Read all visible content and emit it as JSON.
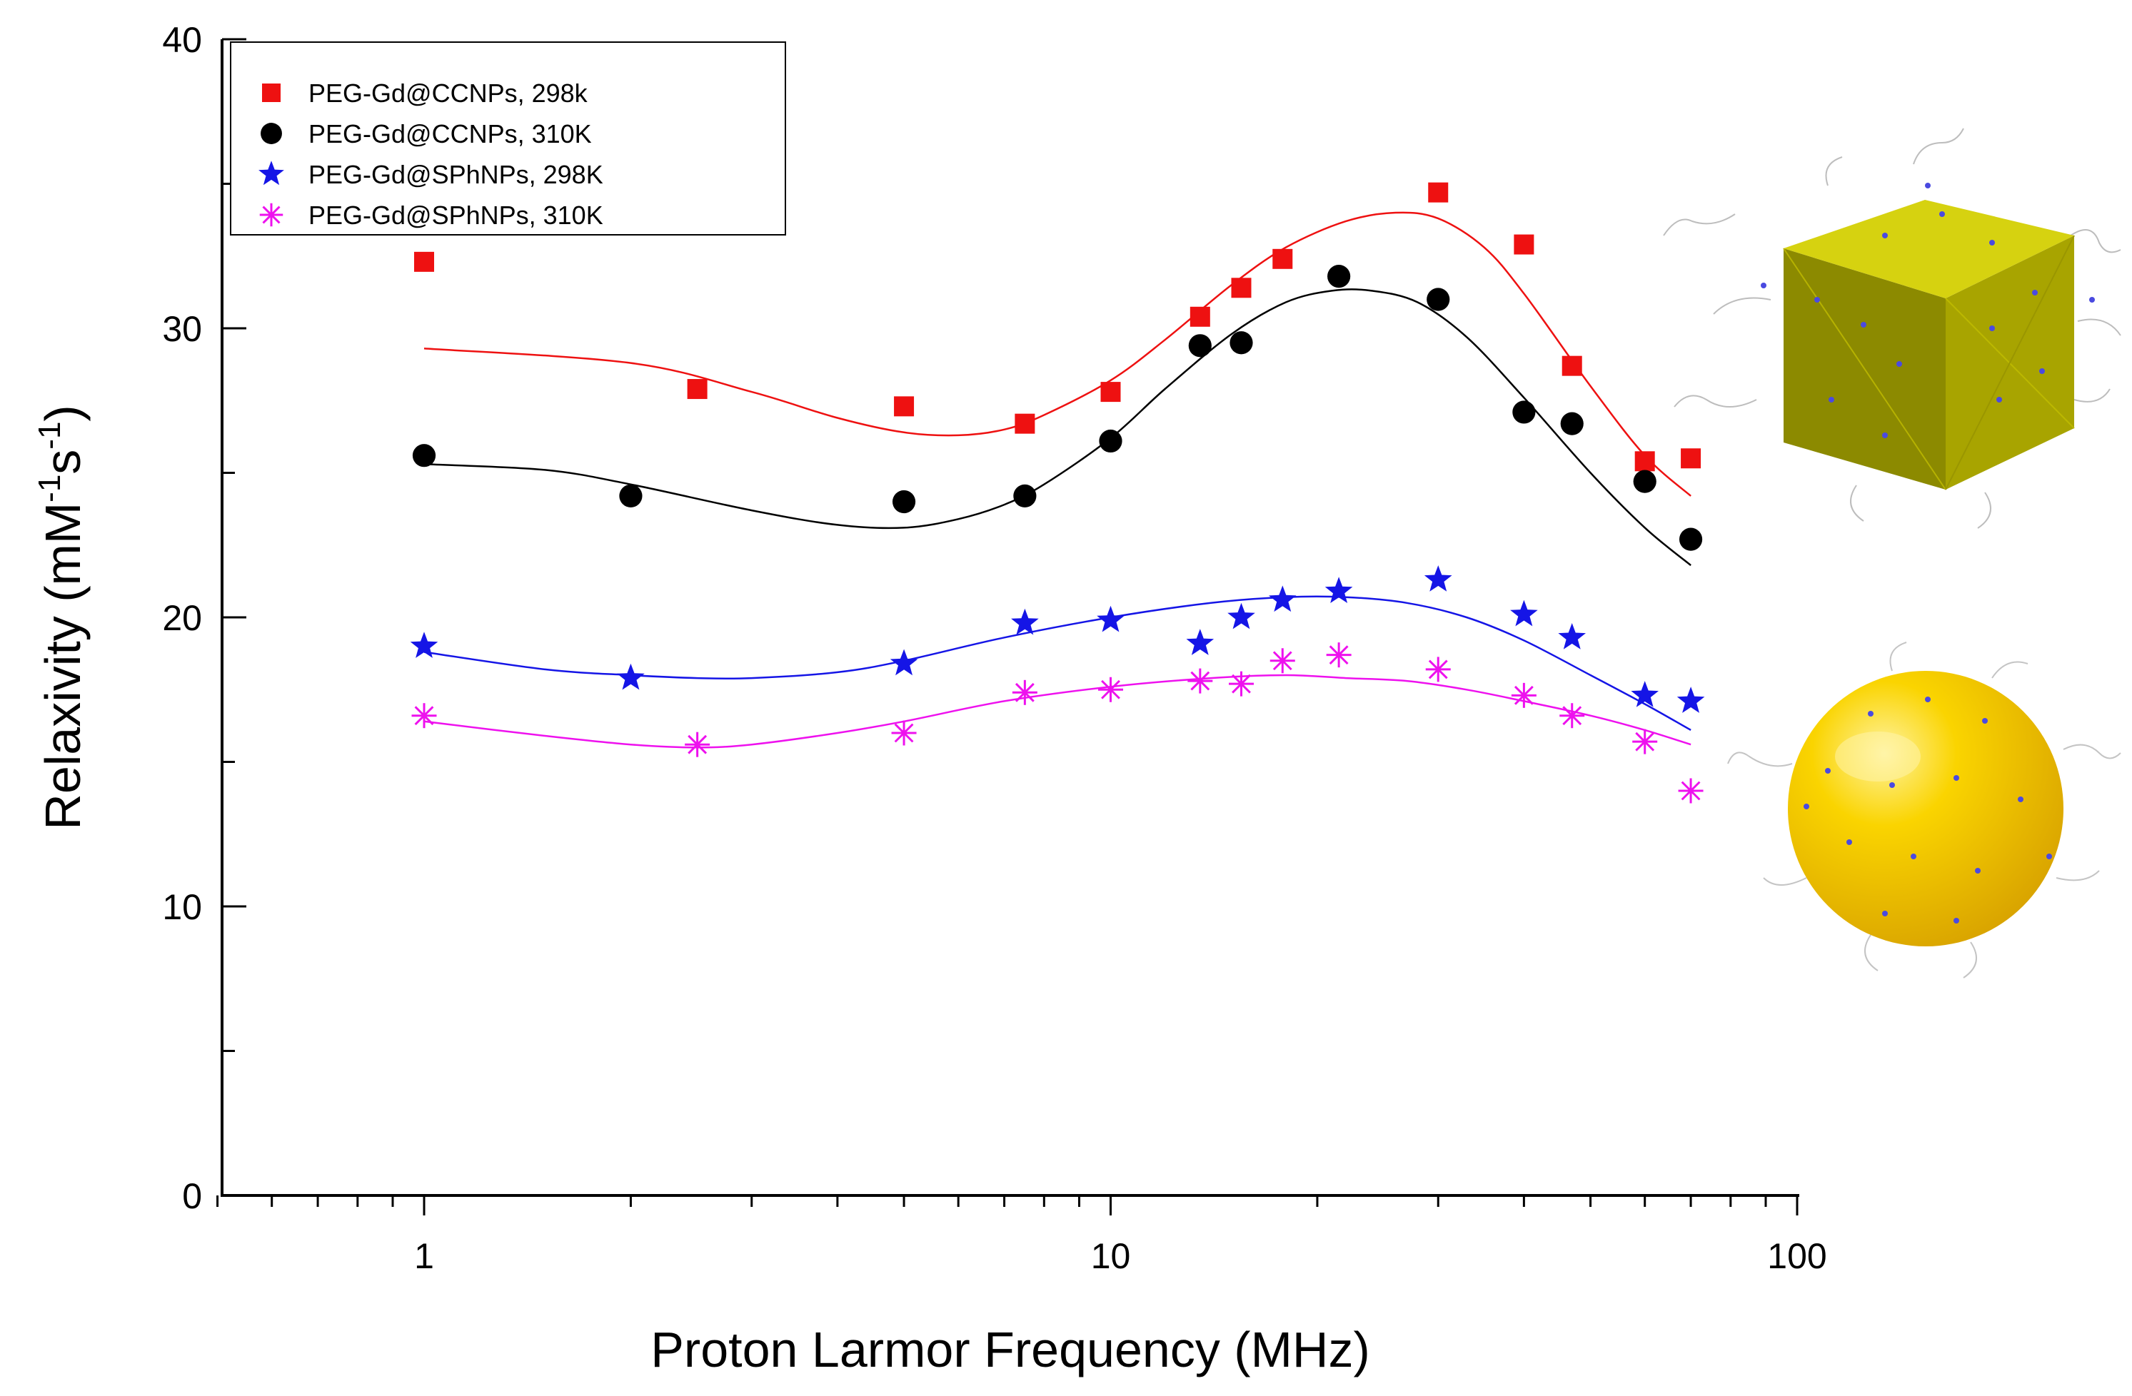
{
  "chart_data": {
    "type": "scatter",
    "title": "",
    "xlabel": "Proton Larmor Frequency (MHz)",
    "ylabel_main": "Relaxivity (mM",
    "ylabel_sup1": "-1",
    "ylabel_mid": "s",
    "ylabel_sup2": "-1",
    "ylabel_end": ")",
    "xscale": "log",
    "xlim": [
      0.5,
      100
    ],
    "ylim": [
      0,
      40
    ],
    "x_tick_labels": [
      "1",
      "10",
      "100"
    ],
    "y_tick_labels": [
      "0",
      "10",
      "20",
      "30",
      "40"
    ],
    "legend_position": "top-left",
    "series": [
      {
        "name": "PEG-Gd@CCNPs, 298k",
        "marker": "square",
        "color": "#ee1111",
        "points": [
          [
            1,
            32.3
          ],
          [
            2.5,
            27.9
          ],
          [
            5,
            27.3
          ],
          [
            7.5,
            26.7
          ],
          [
            10,
            27.8
          ],
          [
            13.5,
            30.4
          ],
          [
            15.5,
            31.4
          ],
          [
            17.8,
            32.4
          ],
          [
            30,
            34.7
          ],
          [
            40,
            32.9
          ],
          [
            47,
            28.7
          ],
          [
            60,
            25.4
          ],
          [
            70,
            25.5
          ]
        ],
        "fit": [
          [
            1,
            29.3
          ],
          [
            2,
            28.8
          ],
          [
            3,
            27.8
          ],
          [
            4,
            26.9
          ],
          [
            5,
            26.4
          ],
          [
            6,
            26.3
          ],
          [
            7,
            26.5
          ],
          [
            8,
            27.0
          ],
          [
            10,
            28.2
          ],
          [
            12,
            29.6
          ],
          [
            15,
            31.5
          ],
          [
            18,
            32.8
          ],
          [
            22,
            33.7
          ],
          [
            26,
            34.0
          ],
          [
            30,
            33.8
          ],
          [
            35,
            32.8
          ],
          [
            40,
            31.2
          ],
          [
            50,
            28.0
          ],
          [
            60,
            25.6
          ],
          [
            70,
            24.2
          ]
        ]
      },
      {
        "name": "PEG-Gd@CCNPs, 310K",
        "marker": "circle",
        "color": "#000000",
        "points": [
          [
            1,
            25.6
          ],
          [
            2,
            24.2
          ],
          [
            5,
            24.0
          ],
          [
            7.5,
            24.2
          ],
          [
            10,
            26.1
          ],
          [
            13.5,
            29.4
          ],
          [
            15.5,
            29.5
          ],
          [
            21.5,
            31.8
          ],
          [
            30,
            31.0
          ],
          [
            40,
            27.1
          ],
          [
            47,
            26.7
          ],
          [
            60,
            24.7
          ],
          [
            70,
            22.7
          ]
        ],
        "fit": [
          [
            1,
            25.3
          ],
          [
            1.5,
            25.1
          ],
          [
            2,
            24.6
          ],
          [
            3,
            23.7
          ],
          [
            4,
            23.2
          ],
          [
            5,
            23.1
          ],
          [
            6,
            23.4
          ],
          [
            7,
            23.9
          ],
          [
            8,
            24.6
          ],
          [
            10,
            26.2
          ],
          [
            12,
            27.9
          ],
          [
            15,
            29.8
          ],
          [
            18,
            30.9
          ],
          [
            21,
            31.3
          ],
          [
            24,
            31.3
          ],
          [
            28,
            30.9
          ],
          [
            33,
            29.7
          ],
          [
            40,
            27.6
          ],
          [
            50,
            25.0
          ],
          [
            60,
            23.1
          ],
          [
            70,
            21.8
          ]
        ]
      },
      {
        "name": "PEG-Gd@SPhNPs, 298K",
        "marker": "star",
        "color": "#1515e6",
        "points": [
          [
            1,
            19.0
          ],
          [
            2,
            17.9
          ],
          [
            5,
            18.4
          ],
          [
            7.5,
            19.8
          ],
          [
            10,
            19.9
          ],
          [
            13.5,
            19.1
          ],
          [
            15.5,
            20.0
          ],
          [
            17.8,
            20.6
          ],
          [
            21.5,
            20.9
          ],
          [
            30,
            21.3
          ],
          [
            40,
            20.1
          ],
          [
            47,
            19.3
          ],
          [
            60,
            17.3
          ],
          [
            70,
            17.1
          ]
        ],
        "fit": [
          [
            1,
            18.8
          ],
          [
            1.5,
            18.2
          ],
          [
            2,
            18.0
          ],
          [
            2.5,
            17.9
          ],
          [
            3,
            17.9
          ],
          [
            4,
            18.1
          ],
          [
            5,
            18.5
          ],
          [
            7,
            19.3
          ],
          [
            10,
            20.0
          ],
          [
            14,
            20.5
          ],
          [
            18,
            20.7
          ],
          [
            22,
            20.7
          ],
          [
            27,
            20.5
          ],
          [
            33,
            20.0
          ],
          [
            40,
            19.2
          ],
          [
            50,
            18.0
          ],
          [
            60,
            17.0
          ],
          [
            70,
            16.1
          ]
        ]
      },
      {
        "name": "PEG-Gd@SPhNPs, 310K",
        "marker": "asterisk",
        "color": "#ee11ee",
        "points": [
          [
            1,
            16.6
          ],
          [
            2.5,
            15.6
          ],
          [
            5,
            16.0
          ],
          [
            7.5,
            17.4
          ],
          [
            10,
            17.5
          ],
          [
            13.5,
            17.8
          ],
          [
            15.5,
            17.7
          ],
          [
            17.8,
            18.5
          ],
          [
            21.5,
            18.7
          ],
          [
            30,
            18.2
          ],
          [
            40,
            17.3
          ],
          [
            47,
            16.6
          ],
          [
            60,
            15.7
          ],
          [
            70,
            14.0
          ]
        ],
        "fit": [
          [
            1,
            16.4
          ],
          [
            1.5,
            15.9
          ],
          [
            2,
            15.6
          ],
          [
            2.5,
            15.5
          ],
          [
            3,
            15.6
          ],
          [
            4,
            16.0
          ],
          [
            5,
            16.4
          ],
          [
            7,
            17.1
          ],
          [
            10,
            17.6
          ],
          [
            14,
            17.9
          ],
          [
            18,
            18.0
          ],
          [
            22,
            17.9
          ],
          [
            27,
            17.8
          ],
          [
            33,
            17.5
          ],
          [
            40,
            17.1
          ],
          [
            50,
            16.6
          ],
          [
            60,
            16.1
          ],
          [
            70,
            15.6
          ]
        ]
      }
    ]
  },
  "illustrations": {
    "cube": {
      "label": "cube-nanoparticle",
      "color": "#c8c400"
    },
    "sphere": {
      "label": "sphere-nanoparticle",
      "color": "#f5c800"
    }
  }
}
